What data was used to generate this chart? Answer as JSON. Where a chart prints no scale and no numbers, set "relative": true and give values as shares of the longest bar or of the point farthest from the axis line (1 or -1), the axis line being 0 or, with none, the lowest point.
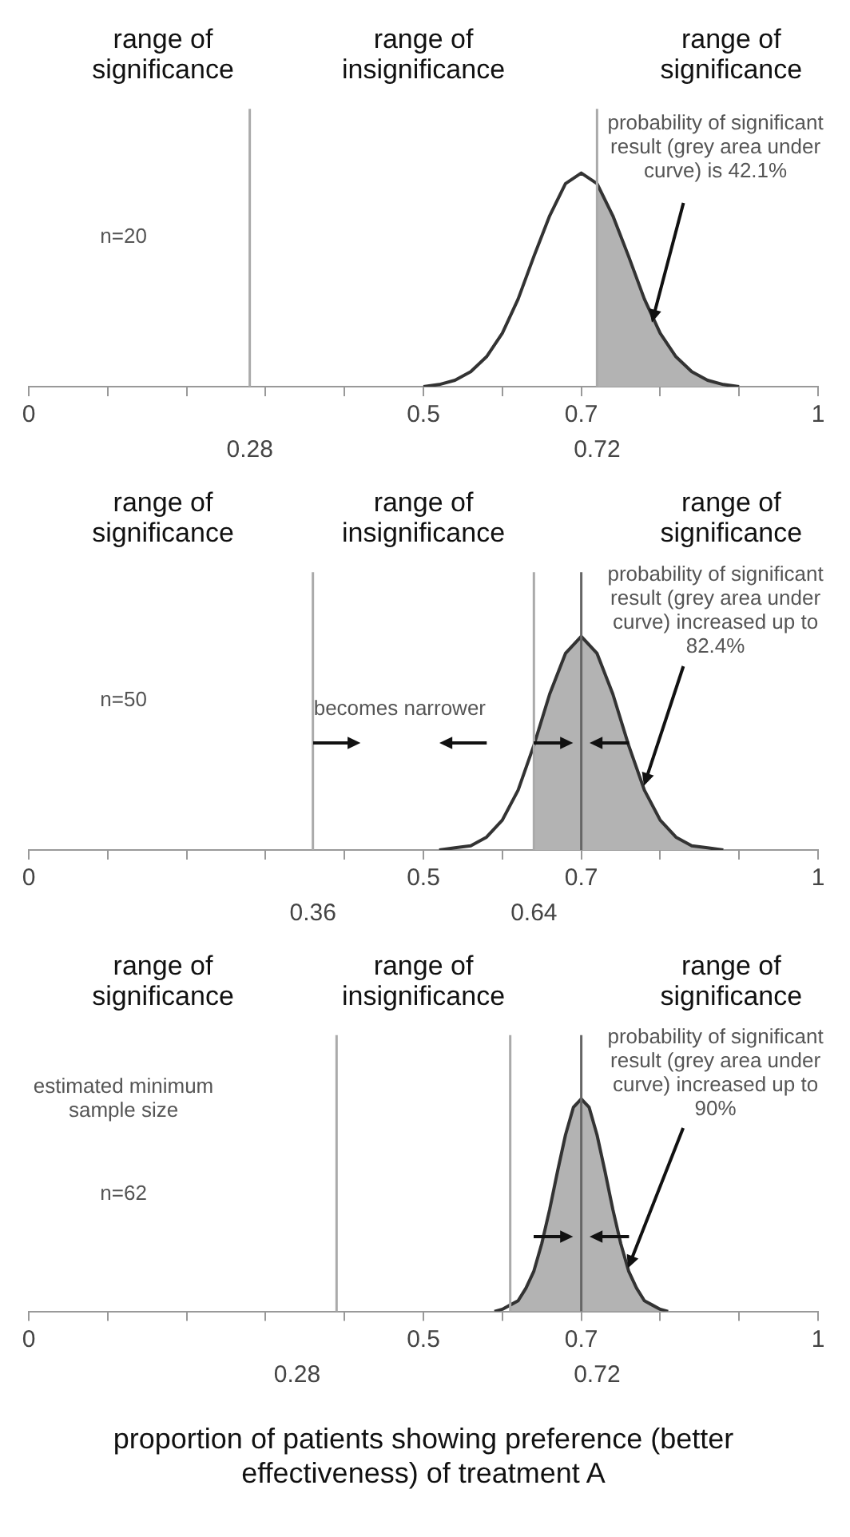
{
  "chart_data": [
    {
      "type": "line",
      "relative": true,
      "marker": "none",
      "xlim": [
        0,
        1
      ],
      "xticks": [
        0,
        {
          "value": 0.1,
          "label": null
        },
        {
          "value": 0.2,
          "label": null
        },
        {
          "value": 0.3,
          "label": null
        },
        {
          "value": 0.4,
          "label": null
        },
        0.5,
        {
          "value": 0.6,
          "label": null
        },
        0.7,
        {
          "value": 0.8,
          "label": null
        },
        {
          "value": 0.9,
          "label": null
        },
        1
      ],
      "series": [
        {
          "type": "area",
          "color": "#b3b3b3",
          "x": [
            0.72,
            0.74,
            0.76,
            0.78,
            0.8,
            0.82,
            0.84,
            0.86,
            0.88,
            0.9
          ],
          "values": [
            0.95,
            0.8,
            0.61,
            0.41,
            0.25,
            0.14,
            0.07,
            0.03,
            0.01,
            0
          ]
        },
        {
          "color": "#333333",
          "x": [
            0.5,
            0.52,
            0.54,
            0.56,
            0.58,
            0.6,
            0.62,
            0.64,
            0.66,
            0.68,
            0.7,
            0.72,
            0.74,
            0.76,
            0.78,
            0.8,
            0.82,
            0.84,
            0.86,
            0.88,
            0.9
          ],
          "values": [
            0,
            0.01,
            0.03,
            0.07,
            0.14,
            0.25,
            0.41,
            0.61,
            0.8,
            0.95,
            1,
            0.95,
            0.8,
            0.61,
            0.41,
            0.25,
            0.14,
            0.07,
            0.03,
            0.01,
            0
          ]
        }
      ],
      "ref_lines": [
        {
          "axis": "x",
          "value": 0.28,
          "label": "0.28",
          "color": "#aaaaaa"
        },
        {
          "axis": "x",
          "value": 0.72,
          "label": "0.72",
          "color": "#aaaaaa"
        }
      ],
      "annotations": [
        "range of significance",
        "range of insignificance",
        "range of significance",
        "n=20",
        "probability of significant result (grey area under curve) is 42.1%"
      ]
    },
    {
      "type": "line",
      "relative": true,
      "marker": "none",
      "xlim": [
        0,
        1
      ],
      "xticks": [
        0,
        {
          "value": 0.1,
          "label": null
        },
        {
          "value": 0.2,
          "label": null
        },
        {
          "value": 0.3,
          "label": null
        },
        {
          "value": 0.4,
          "label": null
        },
        0.5,
        {
          "value": 0.6,
          "label": null
        },
        0.7,
        {
          "value": 0.8,
          "label": null
        },
        {
          "value": 0.9,
          "label": null
        },
        1
      ],
      "series": [
        {
          "type": "area",
          "color": "#b3b3b3",
          "x": [
            0.64,
            0.66,
            0.68,
            0.7,
            0.72,
            0.74,
            0.76,
            0.78,
            0.8,
            0.82,
            0.84,
            0.86,
            0.88
          ],
          "values": [
            0.49,
            0.73,
            0.92,
            1,
            0.92,
            0.73,
            0.49,
            0.28,
            0.14,
            0.06,
            0.02,
            0.01,
            0
          ]
        },
        {
          "color": "#333333",
          "x": [
            0.52,
            0.54,
            0.56,
            0.58,
            0.6,
            0.62,
            0.64,
            0.66,
            0.68,
            0.7,
            0.72,
            0.74,
            0.76,
            0.78,
            0.8,
            0.82,
            0.84,
            0.86,
            0.88
          ],
          "values": [
            0,
            0.01,
            0.02,
            0.06,
            0.14,
            0.28,
            0.49,
            0.73,
            0.92,
            1,
            0.92,
            0.73,
            0.49,
            0.28,
            0.14,
            0.06,
            0.02,
            0.01,
            0
          ]
        }
      ],
      "ref_lines": [
        {
          "axis": "x",
          "value": 0.36,
          "label": "0.36",
          "color": "#aaaaaa"
        },
        {
          "axis": "x",
          "value": 0.64,
          "label": "0.64",
          "color": "#aaaaaa"
        },
        {
          "axis": "x",
          "value": 0.7,
          "color": "#666666"
        }
      ],
      "annotations": [
        "range of significance",
        "range of insignificance",
        "range of significance",
        "n=50",
        "becomes narrower",
        "probability of significant result (grey area under curve) increased up to 82.4%"
      ]
    },
    {
      "type": "line",
      "relative": true,
      "marker": "none",
      "xlim": [
        0,
        1
      ],
      "xlabel": "proportion of patients showing preference (better effectiveness) of treatment A",
      "xticks": [
        0,
        {
          "value": 0.1,
          "label": null
        },
        {
          "value": 0.2,
          "label": null
        },
        {
          "value": 0.3,
          "label": null
        },
        {
          "value": 0.4,
          "label": null
        },
        0.5,
        {
          "value": 0.6,
          "label": null
        },
        0.7,
        {
          "value": 0.8,
          "label": null
        },
        {
          "value": 0.9,
          "label": null
        },
        1
      ],
      "series": [
        {
          "type": "area",
          "color": "#b3b3b3",
          "x": [
            0.61,
            0.62,
            0.63,
            0.64,
            0.65,
            0.66,
            0.67,
            0.68,
            0.69,
            0.7,
            0.71,
            0.72,
            0.73,
            0.74,
            0.75,
            0.76,
            0.77,
            0.78,
            0.79,
            0.8,
            0.81
          ],
          "values": [
            0.03,
            0.05,
            0.11,
            0.19,
            0.32,
            0.48,
            0.66,
            0.83,
            0.96,
            1,
            0.96,
            0.83,
            0.66,
            0.48,
            0.32,
            0.19,
            0.11,
            0.05,
            0.03,
            0.01,
            0
          ]
        },
        {
          "color": "#333333",
          "x": [
            0.59,
            0.6,
            0.61,
            0.62,
            0.63,
            0.64,
            0.65,
            0.66,
            0.67,
            0.68,
            0.69,
            0.7,
            0.71,
            0.72,
            0.73,
            0.74,
            0.75,
            0.76,
            0.77,
            0.78,
            0.79,
            0.8,
            0.81
          ],
          "values": [
            0,
            0.01,
            0.03,
            0.05,
            0.11,
            0.19,
            0.32,
            0.48,
            0.66,
            0.83,
            0.96,
            1,
            0.96,
            0.83,
            0.66,
            0.48,
            0.32,
            0.19,
            0.11,
            0.05,
            0.03,
            0.01,
            0
          ]
        }
      ],
      "ref_lines": [
        {
          "axis": "x",
          "value": 0.39,
          "color": "#aaaaaa"
        },
        {
          "axis": "x",
          "value": 0.61,
          "color": "#aaaaaa"
        },
        {
          "axis": "x",
          "value": 0.7,
          "color": "#666666"
        }
      ],
      "annotations": [
        "range of significance",
        "range of insignificance",
        "range of significance",
        "estimated minimum sample size",
        "n=62",
        "probability of significant result (grey area under curve) increased up to 90%",
        "0.28",
        "0.72"
      ]
    }
  ]
}
